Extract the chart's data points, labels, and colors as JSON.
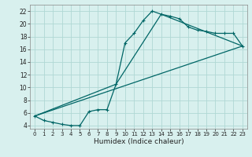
{
  "title": "",
  "xlabel": "Humidex (Indice chaleur)",
  "ylabel": "",
  "bg_color": "#d8f0ee",
  "grid_color": "#b0d8d4",
  "line_color": "#006666",
  "xlim": [
    -0.5,
    23.5
  ],
  "ylim": [
    3.5,
    23.0
  ],
  "xticks": [
    0,
    1,
    2,
    3,
    4,
    5,
    6,
    7,
    8,
    9,
    10,
    11,
    12,
    13,
    14,
    15,
    16,
    17,
    18,
    19,
    20,
    21,
    22,
    23
  ],
  "yticks": [
    4,
    6,
    8,
    10,
    12,
    14,
    16,
    18,
    20,
    22
  ],
  "line1_x": [
    0,
    1,
    2,
    3,
    4,
    5,
    6,
    7,
    8,
    9,
    10,
    11,
    12,
    13,
    14,
    15,
    16,
    17,
    18,
    19,
    20,
    21,
    22,
    23
  ],
  "line1_y": [
    5.5,
    4.8,
    4.5,
    4.2,
    4.0,
    4.0,
    6.2,
    6.5,
    6.5,
    10.5,
    17.0,
    18.5,
    20.5,
    22.0,
    21.5,
    21.2,
    20.8,
    19.5,
    19.0,
    18.8,
    18.5,
    18.5,
    18.5,
    16.5
  ],
  "line2_x": [
    0,
    9,
    14,
    23
  ],
  "line2_y": [
    5.5,
    10.5,
    21.5,
    16.5
  ],
  "line3_x": [
    0,
    23
  ],
  "line3_y": [
    5.5,
    16.5
  ],
  "xtick_fontsize": 5,
  "ytick_fontsize": 5.5,
  "xlabel_fontsize": 6.5
}
